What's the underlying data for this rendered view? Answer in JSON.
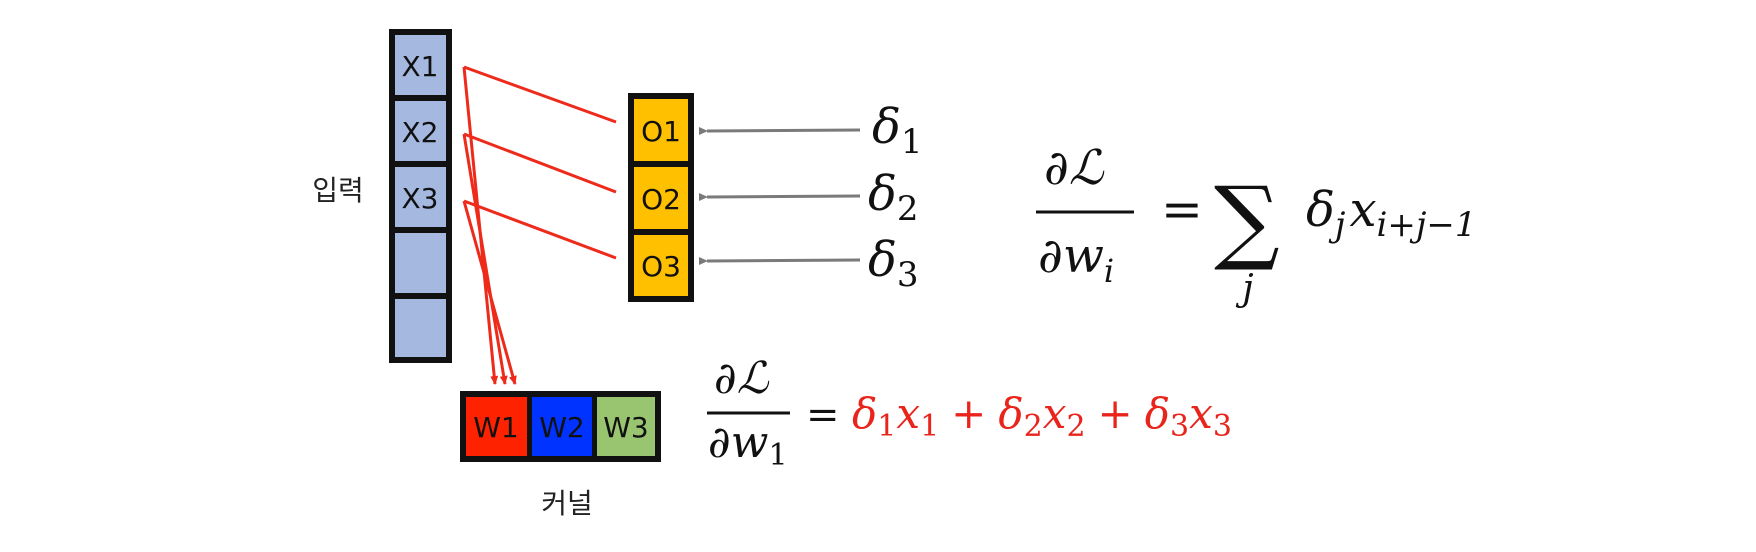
{
  "labels": {
    "input": "입력",
    "kernel": "커널"
  },
  "input_cells": [
    "X1",
    "X2",
    "X3",
    "",
    ""
  ],
  "output_cells": [
    "O1",
    "O2",
    "O3"
  ],
  "kernel_cells": [
    "W1",
    "W2",
    "W3"
  ],
  "deltas": [
    {
      "sym": "δ",
      "sub": "1"
    },
    {
      "sym": "δ",
      "sub": "2"
    },
    {
      "sym": "δ",
      "sub": "3"
    }
  ],
  "general_formula": {
    "partial": "∂",
    "loss": "ℒ",
    "w": "w",
    "w_sub": "i",
    "equals": "=",
    "sum": "∑",
    "sum_index": "j",
    "delta": "δ",
    "delta_sub": "j",
    "x": "x",
    "x_sub": "i+j−1"
  },
  "specific_formula": {
    "partial": "∂",
    "loss": "ℒ",
    "w": "w",
    "w_sub": "1",
    "equals": "=",
    "plus": "+",
    "terms": [
      {
        "delta": "δ",
        "delta_sub": "1",
        "x": "x",
        "x_sub": "1"
      },
      {
        "delta": "δ",
        "delta_sub": "2",
        "x": "x",
        "x_sub": "2"
      },
      {
        "delta": "δ",
        "delta_sub": "3",
        "x": "x",
        "x_sub": "3"
      }
    ]
  },
  "colors": {
    "input_fill": "#a4b8e0",
    "output_fill": "#ffc000",
    "w1_fill": "#ff2200",
    "w2_fill": "#0033ff",
    "w3_fill": "#99c470",
    "connector_red": "#ee2a1b",
    "delta_arrow_gray": "#7a7a7a",
    "formula_red": "#e8241b",
    "border": "#111111"
  }
}
